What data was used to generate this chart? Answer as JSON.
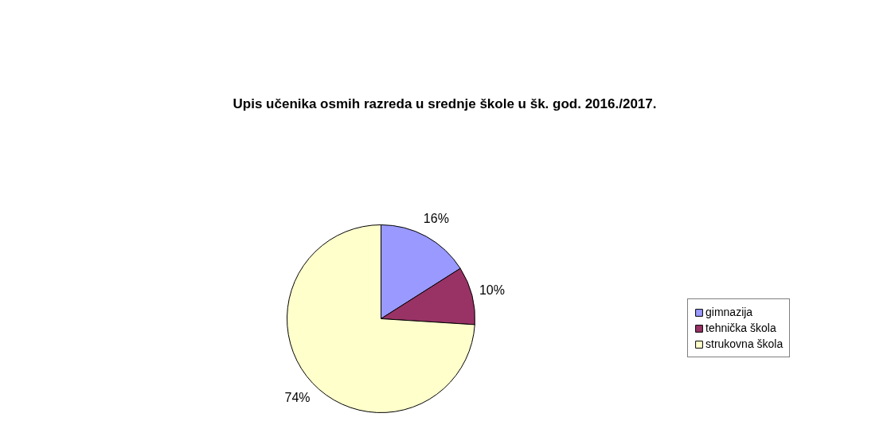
{
  "chart_data": {
    "type": "pie",
    "title": "Upis učenika osmih razreda u srednje škole u šk. god. 2016./2017.",
    "categories": [
      "gimnazija",
      "tehnička škola",
      "strukovna škola"
    ],
    "values": [
      16,
      10,
      74
    ],
    "colors": [
      "#9999ff",
      "#993366",
      "#ffffcc"
    ],
    "value_labels": [
      "16%",
      "10%",
      "74%"
    ],
    "legend": "right"
  }
}
